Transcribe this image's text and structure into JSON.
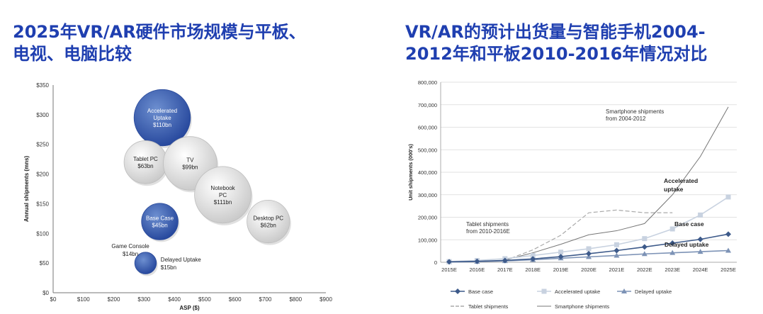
{
  "left_title": "2025年VR/AR硬件市场规模与平板、\n电视、电脑比较",
  "right_title": "VR/AR的预计出货量与智能手机2004-\n2012年和平板2010-2016年情况对比",
  "colors": {
    "title": "#1f3fb0",
    "blue_bubble": "#3a5fae",
    "grey_bubble": "#e0e0e0"
  },
  "chart_data": [
    {
      "type": "scatter",
      "xlabel": "ASP ($)",
      "ylabel": "Annual shipments (mns)",
      "xlim": [
        0,
        900
      ],
      "ylim": [
        0,
        350
      ],
      "x_ticks": [
        "$0",
        "$100",
        "$200",
        "$300",
        "$400",
        "$500",
        "$600",
        "$700",
        "$800",
        "$900"
      ],
      "y_ticks": [
        "$0",
        "$50",
        "$100",
        "$150",
        "$200",
        "$250",
        "$300",
        "$350"
      ],
      "bubbles": [
        {
          "name": "Accelerated Uptake",
          "value": "$110bn",
          "x": 360,
          "y": 295,
          "size": 110,
          "color": "blue"
        },
        {
          "name": "Tablet PC",
          "value": "$63bn",
          "x": 305,
          "y": 220,
          "size": 63,
          "color": "grey"
        },
        {
          "name": "TV",
          "value": "$99bn",
          "x": 452,
          "y": 218,
          "size": 99,
          "color": "grey"
        },
        {
          "name": "Notebook PC",
          "value": "$111bn",
          "x": 560,
          "y": 165,
          "size": 111,
          "color": "grey"
        },
        {
          "name": "Base Case",
          "value": "$45bn",
          "x": 352,
          "y": 120,
          "size": 45,
          "color": "blue"
        },
        {
          "name": "Desktop PC",
          "value": "$62bn",
          "x": 710,
          "y": 120,
          "size": 62,
          "color": "grey"
        },
        {
          "name": "Delayed Uptake",
          "value": "$15bn",
          "x": 305,
          "y": 50,
          "size": 15,
          "color": "blue"
        },
        {
          "name": "Game Console",
          "value": "$14bn",
          "x": 255,
          "y": 75,
          "size": 14,
          "color": "none"
        }
      ]
    },
    {
      "type": "line",
      "ylabel": "Unit shipments (000's)",
      "ylim": [
        0,
        800000
      ],
      "y_ticks": [
        "0",
        "100,000",
        "200,000",
        "300,000",
        "400,000",
        "500,000",
        "600,000",
        "700,000",
        "800,000"
      ],
      "categories": [
        "2015E",
        "2016E",
        "2017E",
        "2018E",
        "2019E",
        "2020E",
        "2021E",
        "2022E",
        "2023E",
        "2024E",
        "2025E"
      ],
      "series": [
        {
          "name": "Base case",
          "values": [
            2000,
            4000,
            8000,
            15000,
            25000,
            38000,
            52000,
            68000,
            85000,
            102000,
            125000
          ],
          "color": "#3d5a8a",
          "style": "marker-diamond"
        },
        {
          "name": "Accelerated uptake",
          "values": [
            3000,
            8000,
            16000,
            30000,
            45000,
            60000,
            78000,
            105000,
            148000,
            210000,
            290000
          ],
          "color": "#c8d2e0",
          "style": "marker-square"
        },
        {
          "name": "Delayed uptake",
          "values": [
            1000,
            3000,
            6000,
            11000,
            18000,
            24000,
            30000,
            37000,
            42000,
            47000,
            52000
          ],
          "color": "#7d93b6",
          "style": "marker-triangle"
        },
        {
          "name": "Tablet shipments",
          "values": [
            null,
            null,
            8000,
            55000,
            120000,
            220000,
            232000,
            220000,
            220000,
            null,
            null
          ],
          "color": "#aaaaaa",
          "style": "dashed"
        },
        {
          "name": "Smartphone shipments",
          "values": [
            null,
            null,
            10000,
            42000,
            80000,
            122000,
            140000,
            172000,
            300000,
            470000,
            690000
          ],
          "color": "#777777",
          "style": "solid"
        }
      ],
      "annotations": [
        {
          "text": "Smartphone shipments\nfrom 2004-2012",
          "at": "top-right",
          "bold": false
        },
        {
          "text": "Tablet shipments\nfrom 2010-2016E",
          "at": "middle-left",
          "bold": false
        },
        {
          "text": "Accelerated\nuptake",
          "at": "right",
          "bold": true
        },
        {
          "text": "Base case",
          "at": "right",
          "bold": true
        },
        {
          "text": "Delayed uptake",
          "at": "right",
          "bold": true
        }
      ],
      "legend_placement": "bottom"
    }
  ]
}
